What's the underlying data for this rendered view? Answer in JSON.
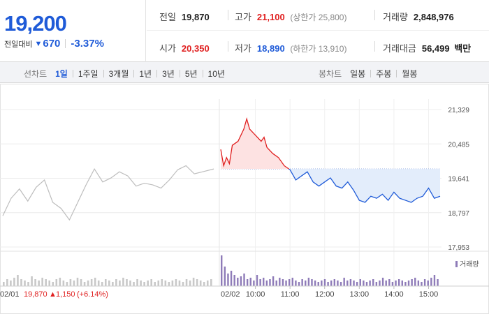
{
  "quote": {
    "price": "19,200",
    "change_label": "전일대비",
    "change_direction_icon": "down-triangle-icon",
    "change_value": "670",
    "change_percent": "-3.37%"
  },
  "stats": {
    "prev_close": {
      "label": "전일",
      "value": "19,870"
    },
    "high": {
      "label": "고가",
      "value": "21,100",
      "sub_label": "상한가",
      "sub_value": "25,800"
    },
    "volume": {
      "label": "거래량",
      "value": "2,848,976"
    },
    "open": {
      "label": "시가",
      "value": "20,350"
    },
    "low": {
      "label": "저가",
      "value": "18,890",
      "sub_label": "하한가",
      "sub_value": "13,910"
    },
    "trade_amount": {
      "label": "거래대금",
      "value": "56,499",
      "unit": "백만"
    }
  },
  "toolbar": {
    "line_chart_label": "선차트",
    "periods": [
      "1일",
      "1주일",
      "3개월",
      "1년",
      "3년",
      "5년",
      "10년"
    ],
    "active_period": "1일",
    "candle_chart_label": "봉차트",
    "candle_periods": [
      "일봉",
      "주봉",
      "월봉"
    ]
  },
  "colors": {
    "rise": "#e02020",
    "fall": "#1f5bd8",
    "previous_day_line": "#bdbdbd",
    "volume_today": "#8e7bb8",
    "volume_previous": "#c8c8c8"
  },
  "chart_data": {
    "type": "line",
    "ylim": [
      17953,
      21329
    ],
    "y_ticks": [
      "21,329",
      "20,485",
      "19,641",
      "18,797",
      "17,953"
    ],
    "x_ticks": [
      "10:00",
      "11:00",
      "12:00",
      "13:00",
      "14:00",
      "15:00"
    ],
    "previous_day_date": "02/01",
    "today_date": "02/02",
    "reference_price": 19870,
    "volume_legend": "거래량",
    "footer": {
      "date": "02/01",
      "close": "19,870",
      "direction_icon": "up-triangle-icon",
      "change": "1,150",
      "percent": "(+6.14%)"
    },
    "series": [
      {
        "name": "02/01",
        "x": [
          "09:00",
          "09:15",
          "09:30",
          "09:45",
          "10:00",
          "10:15",
          "10:30",
          "10:45",
          "11:00",
          "11:15",
          "11:30",
          "11:45",
          "12:00",
          "12:15",
          "12:30",
          "12:45",
          "13:00",
          "13:15",
          "13:30",
          "13:45",
          "14:00",
          "14:15",
          "14:30",
          "14:45",
          "15:00",
          "15:20"
        ],
        "values": [
          18720,
          19150,
          19380,
          19080,
          19420,
          19600,
          19050,
          18900,
          18620,
          19050,
          19480,
          19870,
          19550,
          19650,
          19800,
          19700,
          19450,
          19520,
          19480,
          19400,
          19600,
          19850,
          19950,
          19750,
          19800,
          19870
        ]
      },
      {
        "name": "02/02",
        "x": [
          "09:00",
          "09:05",
          "09:10",
          "09:15",
          "09:20",
          "09:30",
          "09:40",
          "09:45",
          "09:50",
          "10:00",
          "10:10",
          "10:15",
          "10:20",
          "10:30",
          "10:40",
          "10:50",
          "11:00",
          "11:10",
          "11:20",
          "11:30",
          "11:40",
          "11:50",
          "12:00",
          "12:10",
          "12:20",
          "12:30",
          "12:40",
          "12:50",
          "13:00",
          "13:10",
          "13:20",
          "13:30",
          "13:40",
          "13:50",
          "14:00",
          "14:10",
          "14:20",
          "14:30",
          "14:40",
          "14:50",
          "15:00",
          "15:10",
          "15:20"
        ],
        "values": [
          20350,
          19950,
          20150,
          20000,
          20450,
          20550,
          20850,
          21100,
          20850,
          20700,
          20550,
          20650,
          20400,
          20250,
          20150,
          19950,
          19850,
          19600,
          19700,
          19800,
          19550,
          19450,
          19550,
          19650,
          19450,
          19400,
          19550,
          19350,
          19100,
          19050,
          19200,
          19150,
          19250,
          19100,
          19300,
          19150,
          19100,
          19050,
          19150,
          19200,
          19400,
          19150,
          19200
        ]
      }
    ],
    "volume": {
      "previous_day": [
        3,
        5,
        4,
        6,
        8,
        5,
        4,
        3,
        7,
        5,
        4,
        6,
        5,
        4,
        3,
        5,
        6,
        4,
        3,
        5,
        4,
        6,
        5,
        3,
        4,
        5,
        6,
        4,
        3,
        5,
        4,
        3,
        5,
        4,
        6,
        5,
        4,
        3,
        5,
        4,
        3,
        4,
        5,
        3,
        4,
        5,
        4,
        3,
        4,
        5,
        4,
        3,
        5,
        4,
        6,
        5,
        4,
        3,
        4,
        5
      ],
      "today": [
        22,
        14,
        9,
        11,
        8,
        6,
        7,
        9,
        5,
        6,
        4,
        8,
        5,
        6,
        4,
        5,
        7,
        4,
        6,
        5,
        4,
        5,
        6,
        4,
        3,
        5,
        4,
        6,
        5,
        4,
        3,
        4,
        5,
        3,
        4,
        5,
        4,
        3,
        6,
        4,
        5,
        4,
        3,
        5,
        4,
        3,
        4,
        5,
        3,
        4,
        6,
        4,
        5,
        3,
        4,
        5,
        4,
        3,
        4,
        5,
        6,
        4,
        3,
        5,
        4,
        6,
        8,
        5
      ]
    }
  }
}
